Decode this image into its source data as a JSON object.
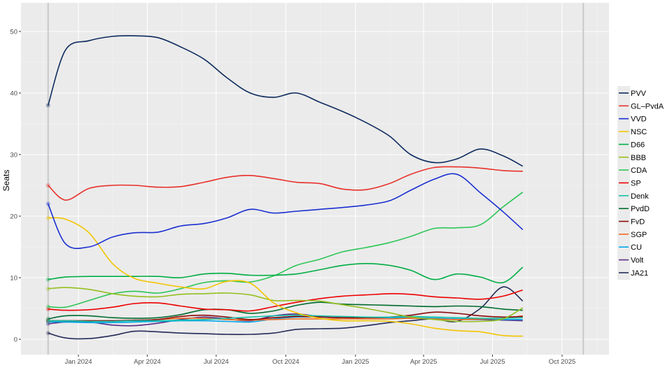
{
  "chart_data": {
    "type": "line",
    "title": "",
    "xlabel": "",
    "ylabel": "Seats",
    "ylim": [
      -2.5,
      54.5
    ],
    "xlim": [
      "2023-10-25",
      "2025-11-15"
    ],
    "grid": true,
    "legend_position": "right",
    "y_ticks": [
      0,
      10,
      20,
      30,
      40,
      50
    ],
    "x_ticks": [
      {
        "date": "2024-01-01",
        "label": "Jan 2024"
      },
      {
        "date": "2024-04-01",
        "label": "Apr 2024"
      },
      {
        "date": "2024-07-01",
        "label": "Jul 2024"
      },
      {
        "date": "2024-10-01",
        "label": "Oct 2024"
      },
      {
        "date": "2025-01-01",
        "label": "Jan 2025"
      },
      {
        "date": "2025-04-01",
        "label": "Apr 2025"
      },
      {
        "date": "2025-07-01",
        "label": "Jul 2025"
      },
      {
        "date": "2025-10-01",
        "label": "Oct 2025"
      }
    ],
    "election_markers": [
      "2023-11-22",
      "2025-10-29"
    ],
    "x": [
      "2023-11-22",
      "2023-12-15",
      "2024-01-15",
      "2024-02-15",
      "2024-03-15",
      "2024-04-15",
      "2024-05-15",
      "2024-06-15",
      "2024-07-15",
      "2024-08-15",
      "2024-09-15",
      "2024-10-15",
      "2024-11-15",
      "2024-12-15",
      "2025-01-15",
      "2025-02-15",
      "2025-03-15",
      "2025-04-15",
      "2025-05-15",
      "2025-06-15",
      "2025-07-15",
      "2025-08-10"
    ],
    "series": [
      {
        "name": "PVV",
        "color": "#0d2b5e",
        "values": [
          38,
          47,
          48.5,
          49.2,
          49.3,
          49,
          47.5,
          45.5,
          42.5,
          40,
          39.3,
          40,
          38.5,
          37,
          35.2,
          33,
          30,
          28.7,
          29.3,
          30.9,
          29.8,
          28.1
        ]
      },
      {
        "name": "GL–PvdA",
        "color": "#e8302a",
        "values": [
          25,
          22.6,
          24.5,
          25,
          25,
          24.7,
          24.8,
          25.5,
          26.3,
          26.6,
          26.1,
          25.5,
          25.3,
          24.4,
          24.3,
          25.3,
          26.8,
          27.9,
          28,
          27.8,
          27.4,
          27.3
        ]
      },
      {
        "name": "VVD",
        "color": "#1a2fd1",
        "values": [
          22,
          15.5,
          15,
          16.6,
          17.3,
          17.4,
          18.4,
          18.8,
          19.7,
          21.1,
          20.5,
          20.8,
          21.1,
          21.4,
          21.8,
          22.5,
          24.2,
          26,
          26.8,
          23.8,
          20.7,
          17.8
        ]
      },
      {
        "name": "NSC",
        "color": "#f2c500",
        "values": [
          19.7,
          19.5,
          17.3,
          12.3,
          9.9,
          9.1,
          8.5,
          8.2,
          9.4,
          9.1,
          5.9,
          4.3,
          3.4,
          3,
          3,
          2.9,
          2.5,
          1.8,
          1.4,
          1.2,
          0.6,
          0.5
        ]
      },
      {
        "name": "D66",
        "color": "#00ad44",
        "values": [
          9.7,
          10.1,
          10.2,
          10.2,
          10.2,
          10.2,
          10,
          10.6,
          10.7,
          10.4,
          10.4,
          10.6,
          11.3,
          12,
          12.3,
          12,
          11.2,
          9.7,
          10.6,
          10.1,
          9.2,
          11.7
        ]
      },
      {
        "name": "BBB",
        "color": "#95bf1f",
        "values": [
          8.2,
          8.4,
          8.1,
          7.4,
          7,
          6.9,
          7.3,
          7.4,
          7.5,
          7.2,
          6.3,
          6.3,
          6.2,
          5.6,
          5,
          4.3,
          3.6,
          3.2,
          2.9,
          2.9,
          3.3,
          5.1
        ]
      },
      {
        "name": "CDA",
        "color": "#2cc658",
        "values": [
          5.3,
          5.2,
          6.3,
          7.4,
          7.8,
          7.5,
          8.2,
          9.2,
          9.5,
          9.3,
          10.3,
          12,
          13,
          14.2,
          14.9,
          15.7,
          16.7,
          18,
          18.1,
          18.6,
          21.5,
          23.9
        ]
      },
      {
        "name": "SP",
        "color": "#ee0000",
        "values": [
          4.9,
          4.7,
          4.8,
          5.2,
          5.8,
          5.9,
          5.4,
          4.9,
          4.8,
          4.6,
          5.3,
          6,
          6.6,
          7,
          7.2,
          7.4,
          7.3,
          6.9,
          6.7,
          6.5,
          7,
          8
        ]
      },
      {
        "name": "Denk",
        "color": "#17c1a8",
        "values": [
          3,
          3,
          2.9,
          2.9,
          3,
          3,
          3.1,
          3.2,
          3.4,
          3.6,
          3.8,
          3.9,
          3.8,
          3.7,
          3.6,
          3.6,
          3.7,
          3.6,
          3.5,
          3.4,
          3.4,
          3.5
        ]
      },
      {
        "name": "PvdD",
        "color": "#006b2d",
        "values": [
          3.3,
          3.8,
          3.8,
          3.5,
          3.4,
          3.5,
          4,
          4.8,
          4.8,
          4.2,
          4.6,
          5.5,
          6,
          5.7,
          5.6,
          5.5,
          5.4,
          5.3,
          5.4,
          5.3,
          4.9,
          4.7
        ]
      },
      {
        "name": "FvD",
        "color": "#8b0a0a",
        "values": [
          3,
          3,
          3,
          3,
          3.1,
          3.2,
          3.7,
          3.9,
          3.6,
          3.2,
          3.5,
          3.7,
          3.6,
          3.5,
          3.5,
          3.6,
          3.9,
          4.4,
          4.2,
          3.8,
          3.6,
          3.7
        ]
      },
      {
        "name": "SGP",
        "color": "#f26a1b",
        "values": [
          3,
          3,
          3,
          3,
          3,
          3.2,
          3.4,
          3.4,
          3.2,
          3.1,
          3.2,
          3.3,
          3.3,
          3.3,
          3.3,
          3.3,
          3.4,
          3.3,
          3.2,
          3.3,
          3.4,
          3.8
        ]
      },
      {
        "name": "CU",
        "color": "#00a6e8",
        "values": [
          2.8,
          2.8,
          2.7,
          2.7,
          2.8,
          2.9,
          3,
          3,
          2.9,
          2.8,
          3.3,
          3.6,
          3.6,
          3.5,
          3.5,
          3.5,
          3.5,
          3.4,
          3.3,
          3.3,
          3.2,
          3.2
        ]
      },
      {
        "name": "Volt",
        "color": "#5a2c86",
        "values": [
          2.5,
          2.8,
          2.8,
          2.3,
          2.2,
          2.6,
          3.2,
          3.6,
          3.3,
          3,
          3.8,
          4.1,
          3.7,
          3.5,
          3.5,
          3.5,
          3.4,
          3.3,
          3.2,
          3.2,
          3.1,
          3
        ]
      },
      {
        "name": "JA21",
        "color": "#242b57",
        "values": [
          1,
          0.2,
          0.1,
          0.6,
          1.3,
          1.2,
          1,
          0.9,
          0.8,
          0.8,
          1,
          1.6,
          1.7,
          1.8,
          2.2,
          2.7,
          3,
          3.3,
          2.9,
          5,
          8.5,
          6.2
        ]
      }
    ]
  }
}
